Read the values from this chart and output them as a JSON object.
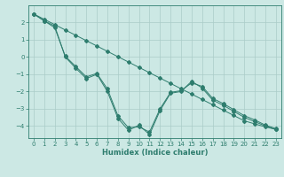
{
  "title": "",
  "xlabel": "Humidex (Indice chaleur)",
  "background_color": "#cce8e4",
  "grid_color": "#aaccc8",
  "line_color": "#2e7d6e",
  "xlim": [
    -0.5,
    23.5
  ],
  "ylim": [
    -4.7,
    3.0
  ],
  "yticks": [
    2,
    1,
    0,
    -1,
    -2,
    -3,
    -4
  ],
  "xticks": [
    0,
    1,
    2,
    3,
    4,
    5,
    6,
    7,
    8,
    9,
    10,
    11,
    12,
    13,
    14,
    15,
    16,
    17,
    18,
    19,
    20,
    21,
    22,
    23
  ],
  "line1_x": [
    0,
    1,
    2,
    3,
    4,
    5,
    6,
    7,
    8,
    9,
    10,
    11,
    12,
    13,
    14,
    15,
    16,
    17,
    18,
    19,
    20,
    21,
    22,
    23
  ],
  "line1_y": [
    2.5,
    2.1,
    1.8,
    0.0,
    -0.65,
    -1.25,
    -1.0,
    -2.0,
    -3.55,
    -4.25,
    -3.95,
    -4.5,
    -3.1,
    -2.1,
    -2.0,
    -1.4,
    -1.8,
    -2.5,
    -2.8,
    -3.15,
    -3.5,
    -3.75,
    -4.0,
    -4.2
  ],
  "line2_x": [
    0,
    1,
    2,
    3,
    4,
    5,
    6,
    7,
    8,
    9,
    10,
    11,
    12,
    13,
    14,
    15,
    16,
    17,
    18,
    19,
    20,
    21,
    22,
    23
  ],
  "line2_y": [
    2.5,
    2.1,
    1.7,
    0.05,
    -0.55,
    -1.15,
    -0.95,
    -1.85,
    -3.4,
    -4.1,
    -4.05,
    -4.35,
    -3.0,
    -2.05,
    -1.95,
    -1.5,
    -1.7,
    -2.4,
    -2.7,
    -3.05,
    -3.4,
    -3.65,
    -3.95,
    -4.15
  ],
  "line3_x": [
    0,
    1,
    2,
    3,
    4,
    5,
    6,
    7,
    8,
    9,
    10,
    11,
    12,
    13,
    14,
    15,
    16,
    17,
    18,
    19,
    20,
    21,
    22,
    23
  ],
  "line3_y": [
    2.5,
    2.19,
    1.88,
    1.57,
    1.26,
    0.95,
    0.64,
    0.33,
    0.02,
    -0.29,
    -0.6,
    -0.91,
    -1.22,
    -1.53,
    -1.84,
    -2.15,
    -2.46,
    -2.77,
    -3.08,
    -3.39,
    -3.7,
    -3.88,
    -4.05,
    -4.2
  ],
  "tick_fontsize": 5.0,
  "xlabel_fontsize": 6.0,
  "linewidth": 0.7,
  "markersize": 2.0
}
